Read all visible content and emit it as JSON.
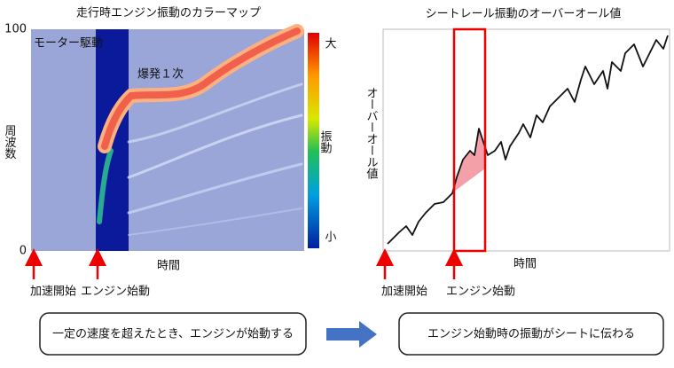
{
  "left": {
    "title": "走行時エンジン振動のカラーマップ",
    "y_label": "周波数",
    "y_max": "100",
    "y_min": "0",
    "region_label": "モーター駆動",
    "line_label": "爆発１次",
    "colorbar_high": "大",
    "colorbar_label": "振動",
    "colorbar_low": "小",
    "x_label": "時間",
    "markers": [
      "加速開始",
      "エンジン始動"
    ]
  },
  "right": {
    "title": "シートレール振動のオーバーオール値",
    "y_label": "オーバーオール値",
    "x_label": "時間",
    "markers": [
      "加速開始",
      "エンジン始動"
    ]
  },
  "steps": [
    "一定の速度を超えたとき、エンジンが始動する",
    "エンジン始動時の振動がシートに伝わる"
  ]
}
